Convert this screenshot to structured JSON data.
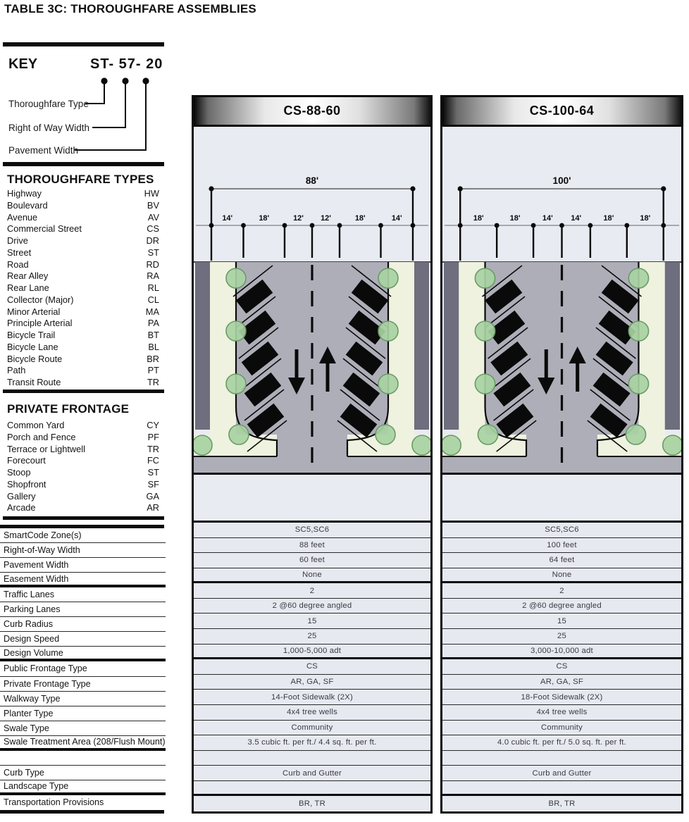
{
  "title": "TABLE 3C: THOROUGHFARE ASSEMBLIES",
  "key": {
    "heading": "KEY",
    "example_code": "ST- 57- 20",
    "callouts": [
      "Thoroughfare Type",
      "Right of Way Width",
      "Pavement Width"
    ]
  },
  "thoroughfare_types": {
    "heading": "THOROUGHFARE TYPES",
    "items": [
      [
        "Highway",
        "HW"
      ],
      [
        "Boulevard",
        "BV"
      ],
      [
        "Avenue",
        "AV"
      ],
      [
        "Commercial Street",
        "CS"
      ],
      [
        "Drive",
        "DR"
      ],
      [
        "Street",
        "ST"
      ],
      [
        "Road",
        "RD"
      ],
      [
        "Rear Alley",
        "RA"
      ],
      [
        "Rear Lane",
        "RL"
      ],
      [
        "Collector (Major)",
        "CL"
      ],
      [
        "Minor Arterial",
        "MA"
      ],
      [
        "Principle Arterial",
        "PA"
      ],
      [
        "Bicycle Trail",
        "BT"
      ],
      [
        "Bicycle Lane",
        "BL"
      ],
      [
        "Bicycle Route",
        "BR"
      ],
      [
        "Path",
        "PT"
      ],
      [
        "Transit Route",
        "TR"
      ]
    ]
  },
  "private_frontage": {
    "heading": "PRIVATE FRONTAGE",
    "items": [
      [
        "Common Yard",
        "CY"
      ],
      [
        "Porch and Fence",
        "PF"
      ],
      [
        "Terrace or Lightwell",
        "TR"
      ],
      [
        "Forecourt",
        "FC"
      ],
      [
        "Stoop",
        "ST"
      ],
      [
        "Shopfront",
        "SF"
      ],
      [
        "Gallery",
        "GA"
      ],
      [
        "Arcade",
        "AR"
      ]
    ]
  },
  "attribute_rows": [
    "SmartCode Zone(s)",
    "Right-of-Way Width",
    "Pavement Width",
    "Easement Width",
    "Traffic Lanes",
    "Parking Lanes",
    "Curb Radius",
    "Design Speed",
    "Design Volume",
    "Public Frontage Type",
    "Private Frontage Type",
    "Walkway Type",
    "Planter Type",
    "Swale Type",
    "Swale Treatment Area (208/Flush Mount)",
    "",
    "Curb Type",
    "Landscape Type",
    "Transportation Provisions"
  ],
  "assemblies": [
    {
      "title": "CS-88-60",
      "total_width": "88'",
      "segment_widths": [
        "14'",
        "18'",
        "12'",
        "12'",
        "18'",
        "14'"
      ],
      "values": [
        "SC5,SC6",
        "88 feet",
        "60 feet",
        "None",
        "2",
        "2 @60 degree angled",
        "15",
        "25",
        "1,000-5,000 adt",
        "CS",
        "AR, GA, SF",
        "14-Foot Sidewalk (2X)",
        "4x4 tree wells",
        "Community",
        "3.5 cubic ft. per ft./ 4.4 sq. ft. per ft.",
        "",
        "Curb and Gutter",
        "",
        "BR, TR"
      ]
    },
    {
      "title": "CS-100-64",
      "total_width": "100'",
      "segment_widths": [
        "18'",
        "18'",
        "14'",
        "14'",
        "18'",
        "18'"
      ],
      "values": [
        "SC5,SC6",
        "100 feet",
        "64 feet",
        "None",
        "2",
        "2 @60 degree angled",
        "15",
        "25",
        "3,000-10,000 adt",
        "CS",
        "AR, GA, SF",
        "18-Foot Sidewalk (2X)",
        "4x4 tree wells",
        "Community",
        "4.0 cubic ft. per ft./ 5.0 sq. ft. per ft.",
        "",
        "Curb and Gutter",
        "",
        "BR, TR"
      ]
    }
  ],
  "colors": {
    "diagram_background": "#e9ebf2",
    "roadway": "#aeaeb9",
    "building": "#6e6e7e",
    "sidewalk": "#eef2df",
    "tree_fill": "#a8d3a2",
    "tree_stroke": "#6a9a66",
    "table_row": "#e7e9f0",
    "border": "#0c0c0c"
  }
}
